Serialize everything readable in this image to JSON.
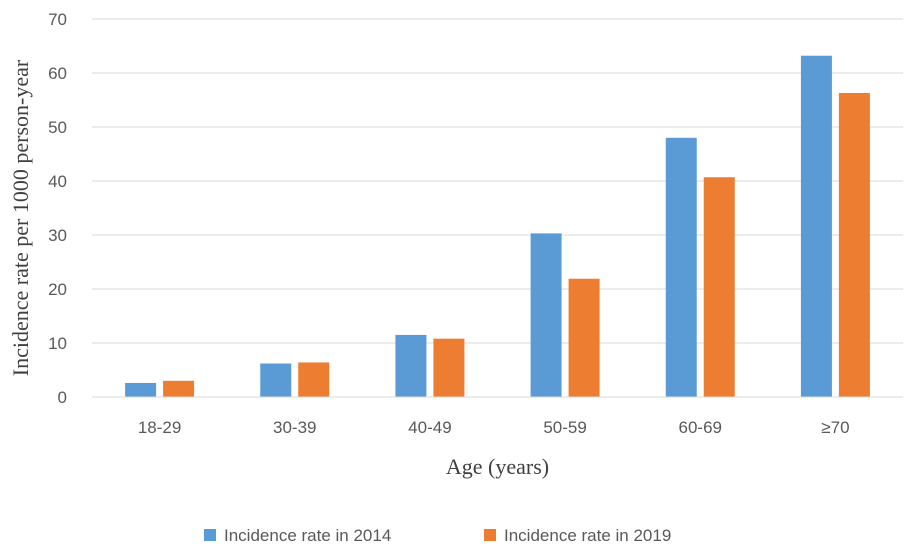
{
  "chart_data": {
    "type": "bar",
    "title": "",
    "xlabel": "Age (years)",
    "ylabel": "Incidence rate per 1000 person-year",
    "categories": [
      "18-29",
      "30-39",
      "40-49",
      "50-59",
      "60-69",
      "≥70"
    ],
    "series": [
      {
        "name": "Incidence rate in 2014",
        "color": "#5B9BD5",
        "values": [
          2.6,
          6.2,
          11.5,
          30.3,
          48.0,
          63.2
        ]
      },
      {
        "name": "Incidence rate in 2019",
        "color": "#ED7D31",
        "values": [
          3.0,
          6.4,
          10.8,
          21.9,
          40.7,
          56.3
        ]
      }
    ],
    "ylim": [
      0,
      70
    ],
    "yticks": [
      0,
      10,
      20,
      30,
      40,
      50,
      60,
      70
    ],
    "grid": true,
    "legend_position": "bottom"
  }
}
